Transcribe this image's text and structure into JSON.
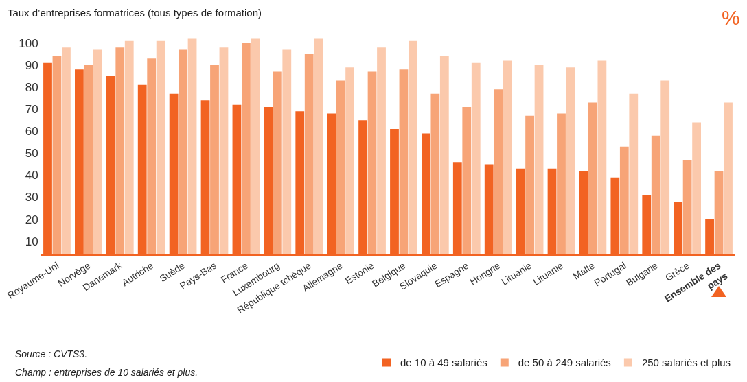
{
  "chart_data": {
    "type": "bar",
    "title": "Taux d’entreprises formatrices (tous types de formation)",
    "categories": [
      "Royaume-Uni",
      "Norvège",
      "Danemark",
      "Autriche",
      "Suède",
      "Pays-Bas",
      "France",
      "Luxembourg",
      "République tchèque",
      "Allemagne",
      "Estonie",
      "Belgique",
      "Slovaquie",
      "Espagne",
      "Hongrie",
      "Lituanie",
      "Lituanie",
      "Malte",
      "Portugal",
      "Bulgarie",
      "Grèce",
      "Ensemble des pays"
    ],
    "series": [
      {
        "name": "de 10 à 49 salariés",
        "color": "#f26322",
        "values": [
          91,
          88,
          85,
          81,
          77,
          74,
          72,
          71,
          69,
          68,
          65,
          61,
          59,
          46,
          45,
          43,
          43,
          42,
          39,
          31,
          28,
          20
        ]
      },
      {
        "name": "de 50 à 249 salariés",
        "color": "#f7a477",
        "values": [
          94,
          90,
          98,
          93,
          97,
          90,
          100,
          87,
          95,
          83,
          87,
          88,
          77,
          71,
          79,
          67,
          68,
          73,
          53,
          58,
          47,
          42
        ]
      },
      {
        "name": "250 salariés et plus",
        "color": "#fbc9ac",
        "values": [
          98,
          97,
          101,
          101,
          102,
          98,
          102,
          97,
          102,
          89,
          98,
          101,
          94,
          91,
          92,
          90,
          89,
          92,
          77,
          83,
          64,
          73
        ]
      }
    ],
    "ylim": [
      4,
      104
    ],
    "yticks": [
      10,
      20,
      30,
      40,
      50,
      60,
      70,
      80,
      90,
      100
    ],
    "grid": false,
    "legend": "bottom right",
    "annotations": [
      "%",
      "Source : CVTS3.",
      "Champ : entreprises de 10 salariés et plus."
    ]
  }
}
